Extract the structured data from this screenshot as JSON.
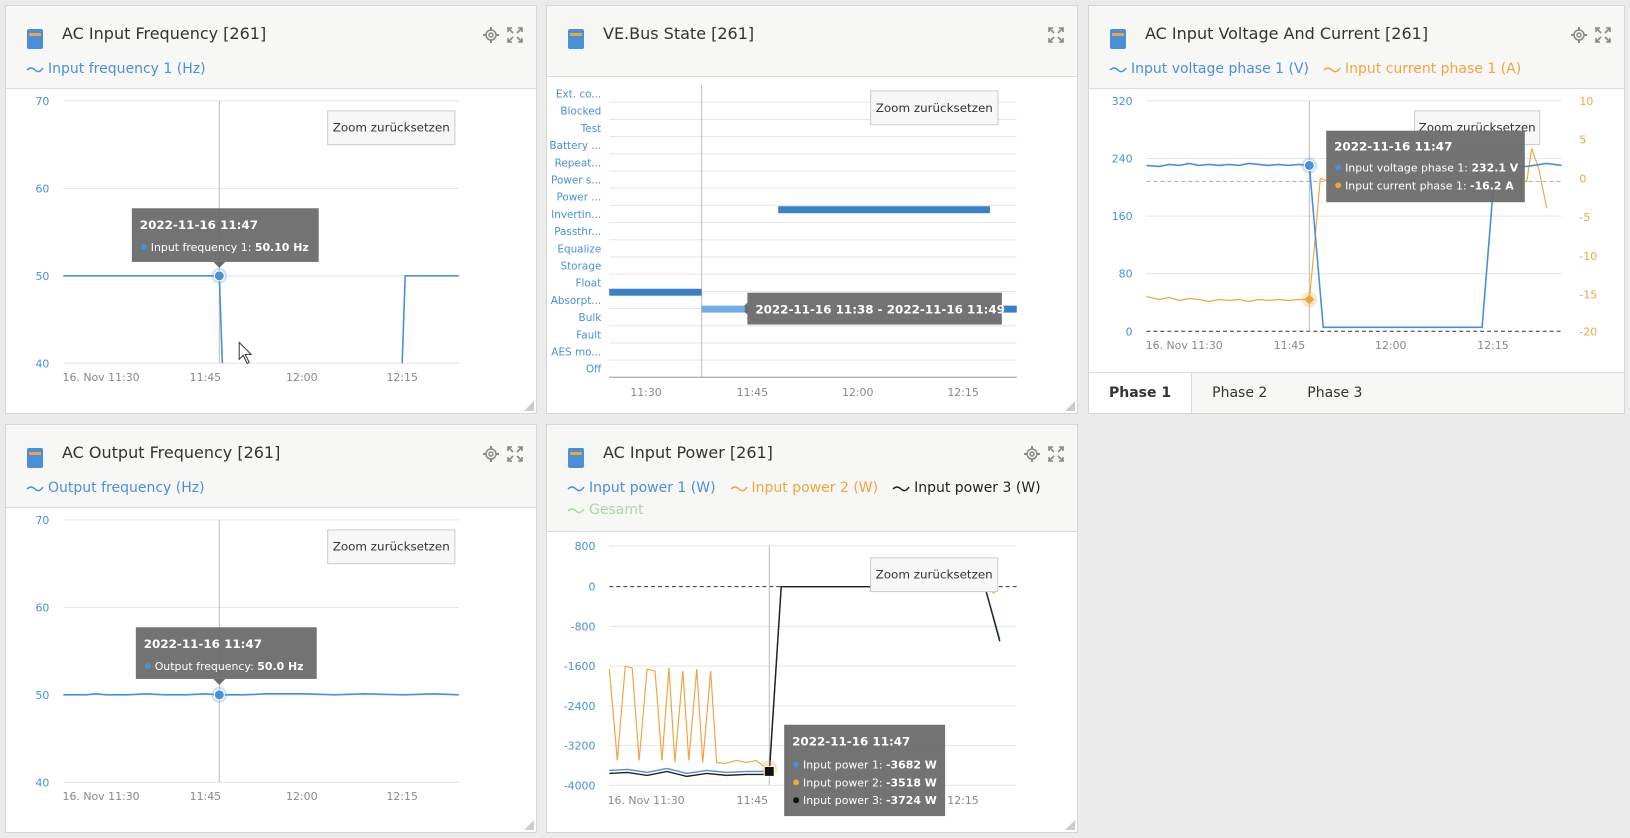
{
  "widgets": {
    "freq_in": {
      "title": "AC Input Frequency [261]",
      "legend": [
        "Input frequency 1 (Hz)"
      ],
      "zoom_label": "Zoom zurücksetzen",
      "yticks": [
        "70",
        "60",
        "50",
        "40"
      ],
      "xticks": [
        "16. Nov 11:30",
        "11:45",
        "12:00",
        "12:15"
      ],
      "tooltip": {
        "title": "2022-11-16 11:47",
        "label": "Input frequency 1: ",
        "value": "50.10 Hz"
      }
    },
    "vebus": {
      "title": "VE.Bus State [261]",
      "zoom_label": "Zoom zurücksetzen",
      "states": [
        "Ext. co...",
        "Blocked",
        "Test",
        "Battery ...",
        "Repeat...",
        "Power s...",
        "Power ...",
        "Invertin...",
        "Passthr...",
        "Equalize",
        "Storage",
        "Float",
        "Absorpt...",
        "Bulk",
        "Fault",
        "AES mo...",
        "Off"
      ],
      "xticks": [
        "11:30",
        "11:45",
        "12:00",
        "12:15"
      ],
      "tooltip": {
        "text": "2022-11-16 11:38 - 2022-11-16 11:49"
      }
    },
    "volt_cur": {
      "title": "AC Input Voltage And Current [261]",
      "legend": [
        "Input voltage phase 1 (V)",
        "Input current phase 1 (A)"
      ],
      "zoom_label": "Zoom zurücksetzen",
      "yticks_left": [
        "320",
        "240",
        "160",
        "80",
        "0"
      ],
      "yticks_right": [
        "10",
        "5",
        "0",
        "-5",
        "-10",
        "-15",
        "-20"
      ],
      "xticks": [
        "16. Nov 11:30",
        "11:45",
        "12:00",
        "12:15"
      ],
      "tooltip": {
        "title": "2022-11-16 11:47",
        "line1_label": "Input voltage phase 1: ",
        "line1_value": "232.1 V",
        "line2_label": "Input current phase 1: ",
        "line2_value": "-16.2 A"
      },
      "tabs": [
        "Phase 1",
        "Phase 2",
        "Phase 3"
      ]
    },
    "freq_out": {
      "title": "AC Output Frequency [261]",
      "legend": [
        "Output frequency (Hz)"
      ],
      "zoom_label": "Zoom zurücksetzen",
      "yticks": [
        "70",
        "60",
        "50",
        "40"
      ],
      "xticks": [
        "16. Nov 11:30",
        "11:45",
        "12:00",
        "12:15"
      ],
      "tooltip": {
        "title": "2022-11-16 11:47",
        "label": "Output frequency: ",
        "value": "50.0 Hz"
      }
    },
    "power": {
      "title": "AC Input Power [261]",
      "legend": [
        "Input power 1 (W)",
        "Input power 2 (W)",
        "Input power 3 (W)",
        "Gesamt"
      ],
      "zoom_label": "Zoom zurücksetzen",
      "yticks": [
        "800",
        "0",
        "-800",
        "-1600",
        "-2400",
        "-3200",
        "-4000"
      ],
      "xticks": [
        "16. Nov 11:30",
        "11:45",
        "12:15"
      ],
      "tooltip": {
        "title": "2022-11-16 11:47",
        "l1": "Input power 1: ",
        "v1": "-3682 W",
        "l2": "Input power 2: ",
        "v2": "-3518 W",
        "l3": "Input power 3: ",
        "v3": "-3724 W"
      }
    }
  },
  "colors": {
    "blue": "#4a90d9",
    "orange": "#f0a640",
    "black": "#222222",
    "green": "#a8d8a0",
    "tooltip_bg": "#6b6b6b"
  }
}
